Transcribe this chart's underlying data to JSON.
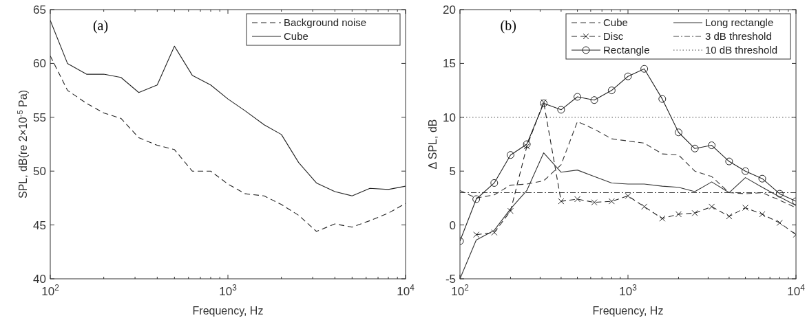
{
  "chart_data": [
    {
      "type": "line",
      "annotations": [
        "(a)"
      ],
      "xlabel": "Frequency, Hz",
      "ylabel": "SPL, dB(re 2×10$^{-5}$ Pa)",
      "log": "x",
      "xlim": [
        100,
        10000
      ],
      "ylim": [
        40,
        65
      ],
      "xticks": [
        {
          "value": 100,
          "label": "10$^{2}$"
        },
        {
          "value": 200,
          "label": null
        },
        {
          "value": 300,
          "label": null
        },
        {
          "value": 400,
          "label": null
        },
        {
          "value": 500,
          "label": null
        },
        {
          "value": 600,
          "label": null
        },
        {
          "value": 700,
          "label": null
        },
        {
          "value": 800,
          "label": null
        },
        {
          "value": 900,
          "label": null
        },
        {
          "value": 1000,
          "label": "10$^{3}$"
        },
        {
          "value": 2000,
          "label": null
        },
        {
          "value": 3000,
          "label": null
        },
        {
          "value": 4000,
          "label": null
        },
        {
          "value": 5000,
          "label": null
        },
        {
          "value": 6000,
          "label": null
        },
        {
          "value": 7000,
          "label": null
        },
        {
          "value": 8000,
          "label": null
        },
        {
          "value": 9000,
          "label": null
        },
        {
          "value": 10000,
          "label": "10$^{4}$"
        }
      ],
      "yticks": [
        40,
        45,
        50,
        55,
        60,
        65
      ],
      "grid": false,
      "legend": "top right",
      "x": [
        100,
        125,
        160,
        200,
        250,
        315,
        400,
        500,
        630,
        800,
        1000,
        1250,
        1600,
        2000,
        2500,
        3150,
        4000,
        5000,
        6300,
        8000,
        10000
      ],
      "series": [
        {
          "name": "Background noise",
          "color": "#222222",
          "line_style": "dashed",
          "marker": "none",
          "values": [
            60.7,
            57.5,
            56.3,
            55.4,
            54.9,
            53.1,
            52.4,
            52,
            50,
            50,
            48.8,
            47.9,
            47.7,
            46.9,
            45.9,
            44.4,
            45.1,
            44.8,
            45.4,
            46.1,
            47
          ]
        },
        {
          "name": "Cube",
          "color": "#222222",
          "line_style": "solid",
          "marker": "none",
          "values": [
            64,
            60,
            59,
            59,
            58.7,
            57.3,
            58,
            61.6,
            58.9,
            58,
            56.7,
            55.6,
            54.3,
            53.4,
            50.8,
            48.9,
            48.1,
            47.7,
            48.4,
            48.3,
            48.6
          ]
        }
      ]
    },
    {
      "type": "line",
      "annotations": [
        "(b)"
      ],
      "xlabel": "Frequency, Hz",
      "ylabel": "Δ SPL, dB",
      "log": "x",
      "xlim": [
        100,
        10000
      ],
      "ylim": [
        -5,
        20
      ],
      "xticks": [
        {
          "value": 100,
          "label": "10$^{2}$"
        },
        {
          "value": 200,
          "label": null
        },
        {
          "value": 300,
          "label": null
        },
        {
          "value": 400,
          "label": null
        },
        {
          "value": 500,
          "label": null
        },
        {
          "value": 600,
          "label": null
        },
        {
          "value": 700,
          "label": null
        },
        {
          "value": 800,
          "label": null
        },
        {
          "value": 900,
          "label": null
        },
        {
          "value": 1000,
          "label": "10$^{3}$"
        },
        {
          "value": 2000,
          "label": null
        },
        {
          "value": 3000,
          "label": null
        },
        {
          "value": 4000,
          "label": null
        },
        {
          "value": 5000,
          "label": null
        },
        {
          "value": 6000,
          "label": null
        },
        {
          "value": 7000,
          "label": null
        },
        {
          "value": 8000,
          "label": null
        },
        {
          "value": 9000,
          "label": null
        },
        {
          "value": 10000,
          "label": "10$^{4}$"
        }
      ],
      "yticks": [
        -5,
        0,
        5,
        10,
        15,
        20
      ],
      "grid": false,
      "legend": "top right",
      "x": [
        100,
        125,
        160,
        200,
        250,
        315,
        400,
        500,
        630,
        800,
        1000,
        1250,
        1600,
        2000,
        2500,
        3150,
        4000,
        5000,
        6300,
        8000,
        10000
      ],
      "series": [
        {
          "name": "Cube",
          "color": "#333333",
          "line_style": "dashed",
          "marker": "none",
          "values": [
            3.2,
            2.5,
            2.8,
            3.7,
            3.8,
            4.1,
            5.6,
            9.6,
            8.9,
            8.0,
            7.8,
            7.6,
            6.6,
            6.5,
            5.0,
            4.5,
            3.0,
            2.9,
            3.0,
            2.3,
            1.6
          ]
        },
        {
          "name": "Disc",
          "color": "#222222",
          "line_style": "dashed",
          "marker": "cross",
          "values": [
            null,
            -0.9,
            -0.7,
            1.3,
            7.3,
            11.4,
            2.2,
            2.4,
            2.1,
            2.2,
            2.7,
            1.7,
            0.6,
            1.0,
            1.1,
            1.7,
            0.8,
            1.6,
            1.0,
            0.2,
            -0.9
          ]
        },
        {
          "name": "Rectangle",
          "color": "#222222",
          "line_style": "solid",
          "marker": "circle",
          "values": [
            -1.5,
            2.4,
            3.9,
            6.5,
            7.5,
            11.3,
            10.7,
            11.9,
            11.6,
            12.5,
            13.8,
            14.5,
            11.7,
            8.6,
            7.1,
            7.4,
            5.9,
            5.0,
            4.3,
            2.9,
            2.2
          ]
        },
        {
          "name": "Long rectangle",
          "color": "#333333",
          "line_style": "solid",
          "marker": "none",
          "values": [
            -5,
            -1.4,
            -0.5,
            1.5,
            3.2,
            6.7,
            4.9,
            5.1,
            4.5,
            3.9,
            3.8,
            3.8,
            3.6,
            3.5,
            3.1,
            4.0,
            3.0,
            4.4,
            3.5,
            2.6,
            1.8
          ]
        }
      ],
      "ref_lines": [
        {
          "axis": "y",
          "value": 3,
          "label": "3 dB threshold",
          "color": "#444444",
          "line_style": "dashdot"
        },
        {
          "axis": "y",
          "value": 10,
          "label": "10 dB threshold",
          "color": "#444444",
          "line_style": "dotted"
        }
      ]
    }
  ]
}
